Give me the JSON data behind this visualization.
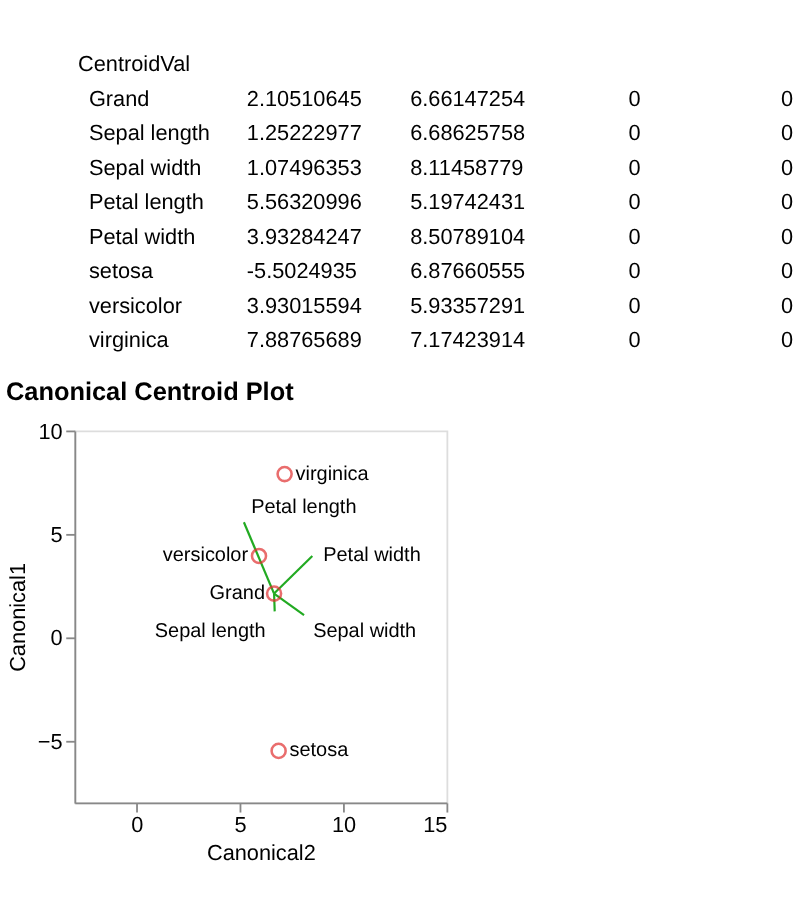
{
  "chart_data": {
    "type": "scatter",
    "title": "Canonical Centroid Plot",
    "xlabel": "Canonical2",
    "ylabel": "Canonical1",
    "xlim": [
      -3,
      15
    ],
    "ylim": [
      -8,
      10
    ],
    "xticks": [
      0,
      5,
      10,
      15
    ],
    "yticks": [
      -5,
      0,
      5,
      10
    ],
    "grid": false,
    "series": [
      {
        "color": "#e03030",
        "marker": "circle",
        "x": [
          6.66,
          6.88,
          5.93,
          7.17
        ],
        "values": [
          2.11,
          -5.5,
          3.93,
          7.89
        ]
      },
      {
        "type": "line",
        "color": "#22aa22",
        "line_style": "solid",
        "x": [
          6.66,
          6.69
        ],
        "values": [
          2.11,
          1.25
        ]
      },
      {
        "type": "line",
        "color": "#22aa22",
        "line_style": "solid",
        "x": [
          6.66,
          8.11
        ],
        "values": [
          2.11,
          1.07
        ]
      },
      {
        "type": "line",
        "color": "#22aa22",
        "line_style": "solid",
        "x": [
          6.66,
          5.2
        ],
        "values": [
          2.11,
          5.56
        ]
      },
      {
        "type": "line",
        "color": "#22aa22",
        "line_style": "solid",
        "x": [
          6.66,
          8.51
        ],
        "values": [
          2.11,
          3.93
        ]
      }
    ],
    "annotations": [
      "CentroidVal",
      "Grand\t2.10510645\t6.66147254\t0\t0",
      "Sepal length\t1.25222977\t6.68625758\t0\t0",
      "Sepal width\t1.07496353\t8.11458779\t0\t0",
      "Petal length\t5.56320996\t5.19742431\t0\t0",
      "Petal width\t3.93284247\t8.50789104\t0\t0",
      "setosa\t-5.5024935\t6.87660555\t0\t0",
      "versicolor\t3.93015594\t5.93357291\t0\t0",
      "virginica\t7.88765689\t7.17423914\t0\t0",
      {
        "text": "Grand",
        "x": 6.66,
        "y": 2.11
      },
      {
        "text": "Sepal length",
        "x": 6.69,
        "y": 1.25
      },
      {
        "text": "Sepal width",
        "x": 8.11,
        "y": 1.07
      },
      {
        "text": "Petal length",
        "x": 5.2,
        "y": 5.56
      },
      {
        "text": "Petal width",
        "x": 8.51,
        "y": 3.93
      },
      {
        "text": "setosa",
        "x": 6.88,
        "y": -5.5
      },
      {
        "text": "versicolor",
        "x": 5.93,
        "y": 3.93
      },
      {
        "text": "virginica",
        "x": 7.17,
        "y": 7.89
      }
    ]
  }
}
